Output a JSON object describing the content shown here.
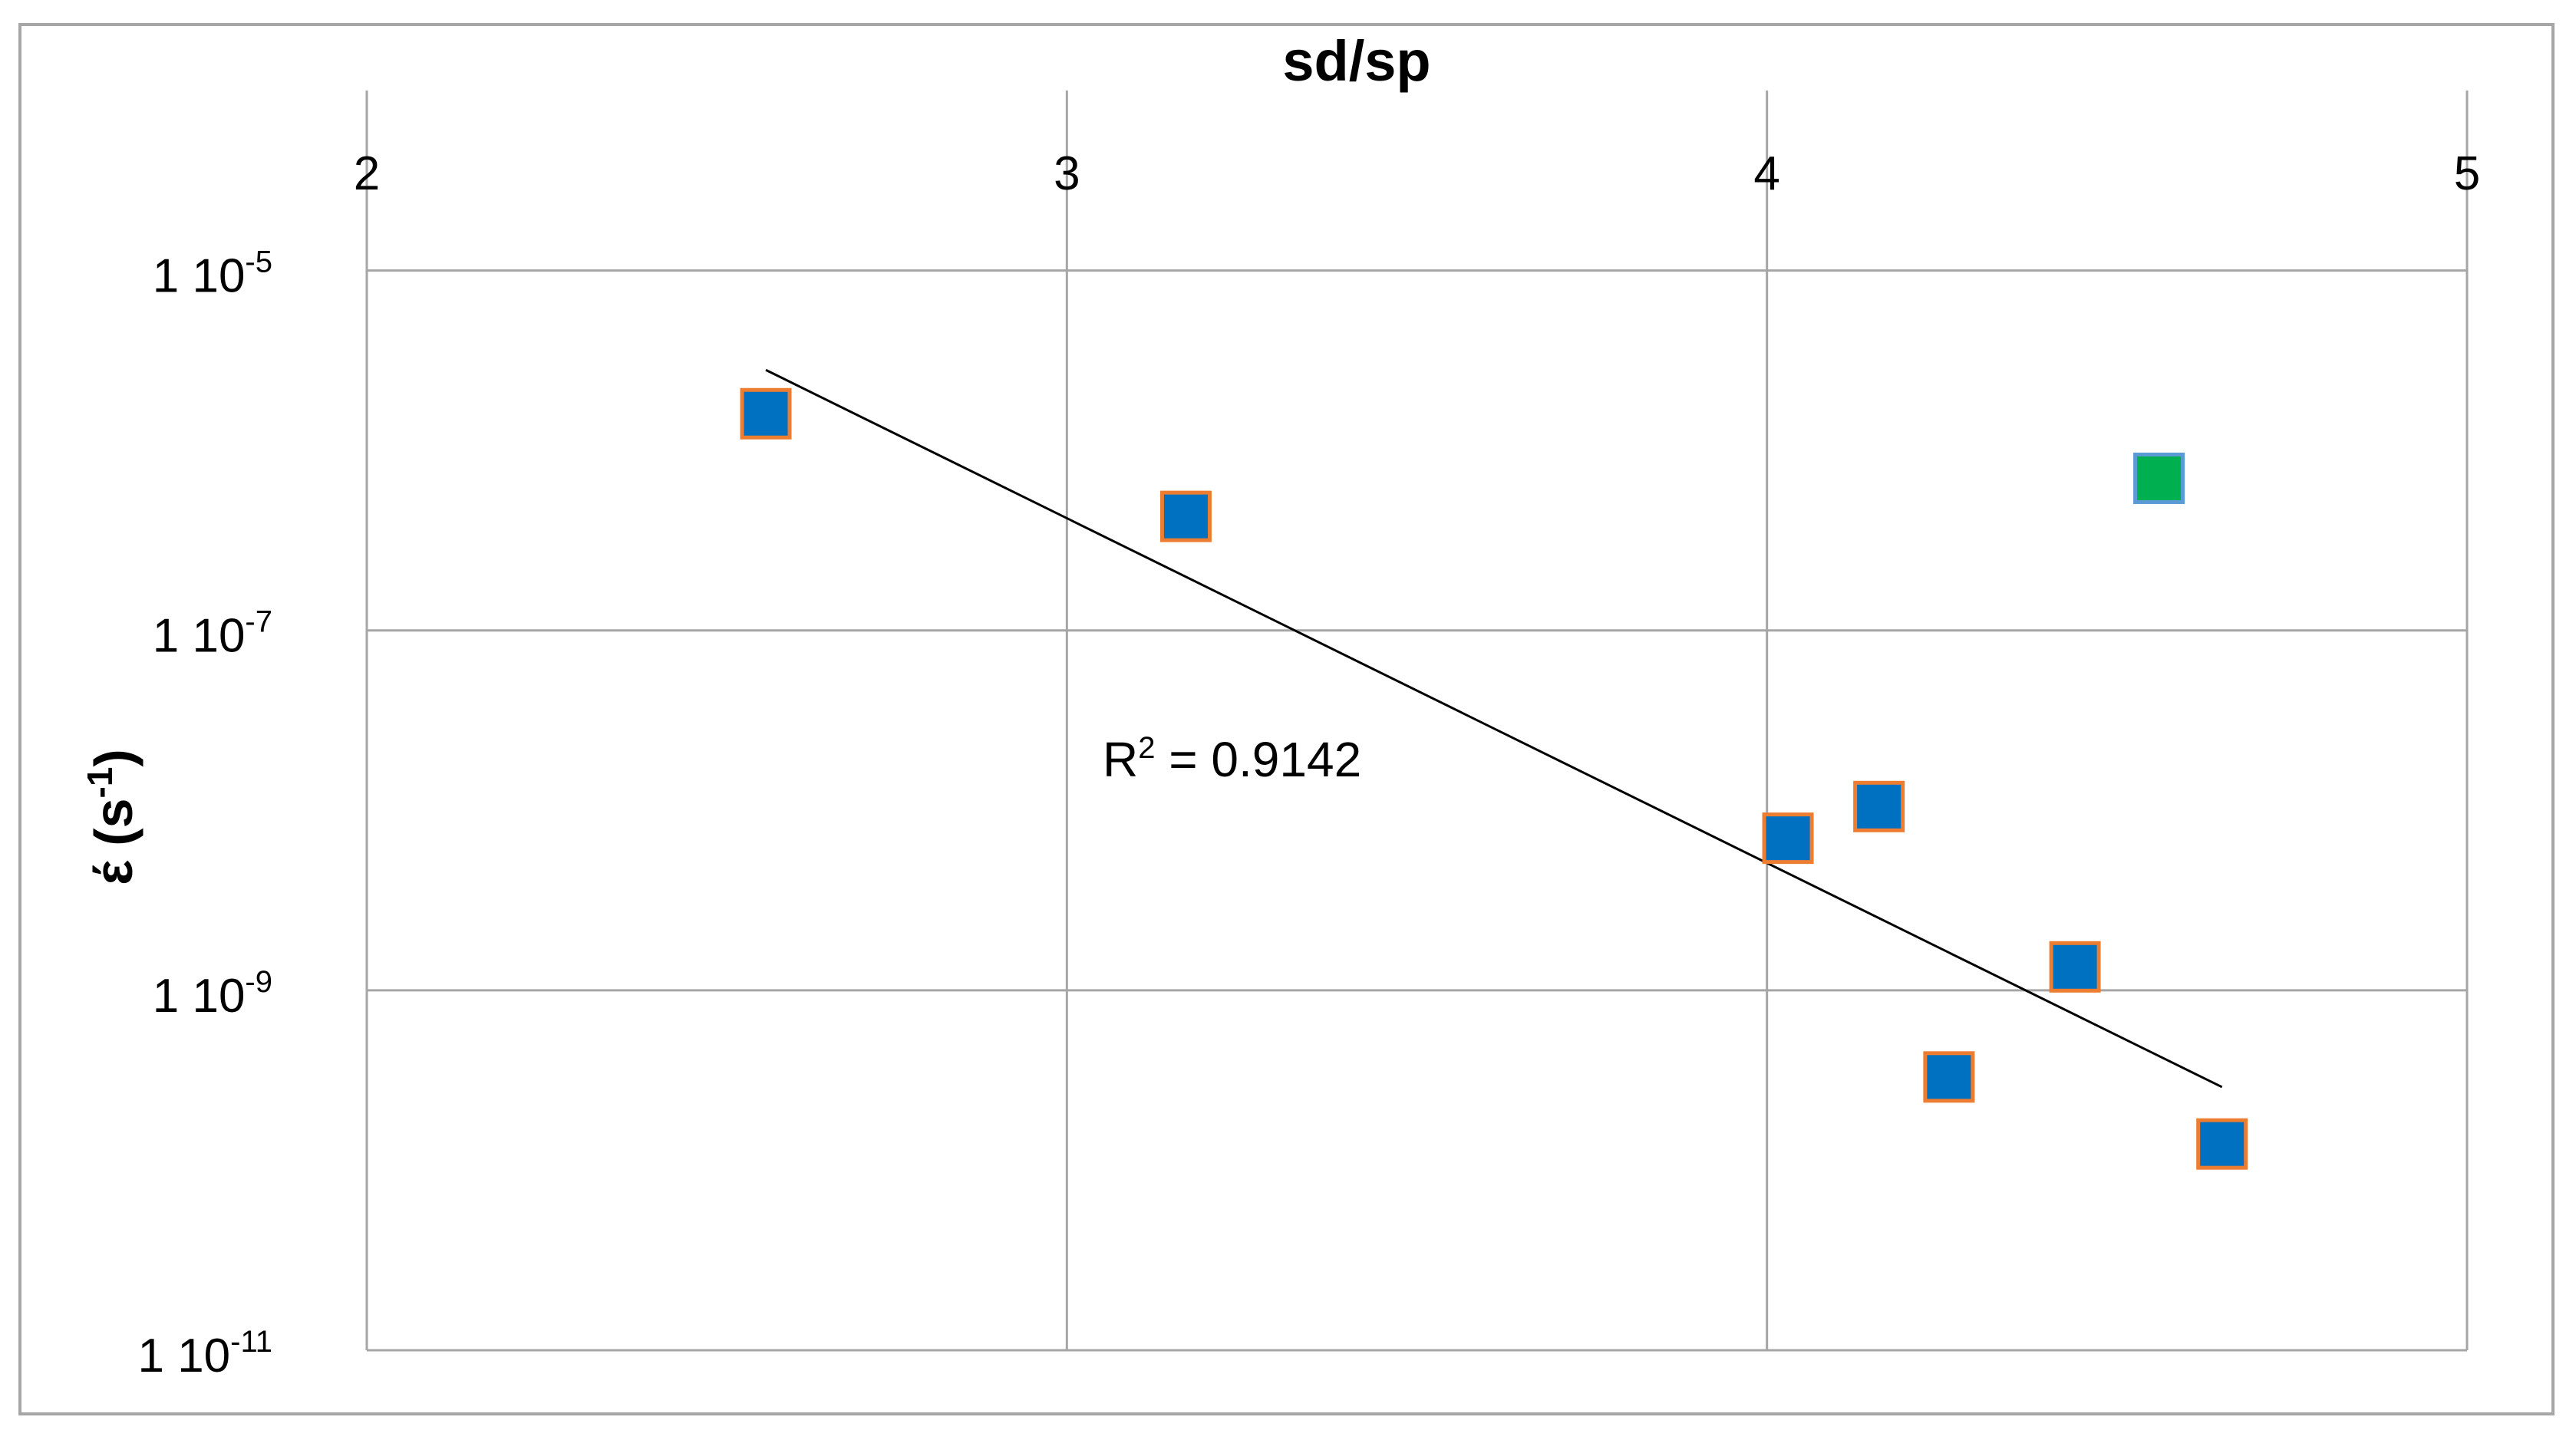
{
  "chart_data": {
    "type": "scatter",
    "title": "sd/sp",
    "ylabel": "έ (s-1)",
    "y_scale": "log",
    "grid": true,
    "xlim": [
      2,
      5
    ],
    "ylim": [
      1e-11,
      0.0001
    ],
    "x_ticks": [
      "2",
      "3",
      "4",
      "5"
    ],
    "y_ticks": [
      {
        "base": "1 10",
        "exp": "-5",
        "value": 1e-05
      },
      {
        "base": "1 10",
        "exp": "-7",
        "value": 1e-07
      },
      {
        "base": "1 10",
        "exp": "-9",
        "value": 1e-09
      },
      {
        "base": "1 10",
        "exp": "-11",
        "value": 1e-11
      }
    ],
    "points": [
      {
        "x": 2.57,
        "y": 1.6e-06,
        "color": "#0070c0"
      },
      {
        "x": 3.17,
        "y": 4.3e-07,
        "color": "#0070c0"
      },
      {
        "x": 4.03,
        "y": 7e-09,
        "color": "#0070c0"
      },
      {
        "x": 4.16,
        "y": 1.05e-08,
        "color": "#0070c0"
      },
      {
        "x": 4.26,
        "y": 3.3e-10,
        "color": "#0070c0"
      },
      {
        "x": 4.44,
        "y": 1.35e-09,
        "color": "#0070c0"
      },
      {
        "x": 4.56,
        "y": 7e-07,
        "color": "#00b050"
      },
      {
        "x": 4.65,
        "y": 1.4e-10,
        "color": "#0070c0"
      }
    ],
    "trendline": {
      "x": [
        2.57,
        4.65
      ],
      "y": [
        2.8e-06,
        2.9e-10
      ]
    },
    "annotation": {
      "base": "R",
      "sup": "2",
      "rest": " = 0.9142"
    },
    "colors": {
      "marker_border": "#ed7d31",
      "grid": "#a6a6a6",
      "trendline": "#000000"
    }
  }
}
